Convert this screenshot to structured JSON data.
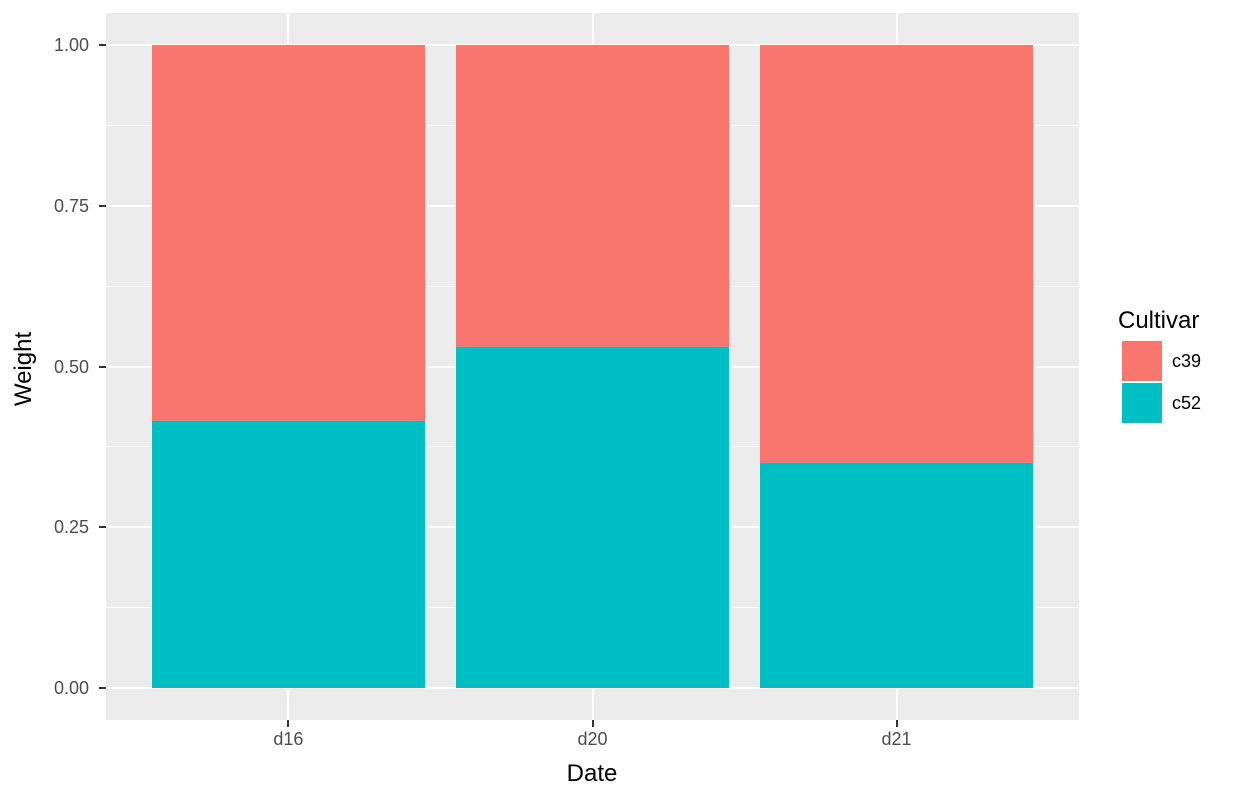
{
  "chart_data": {
    "type": "bar",
    "subtype": "stacked-filled-proportion",
    "title": "",
    "xlabel": "Date",
    "ylabel": "Weight",
    "categories": [
      "d16",
      "d20",
      "d21"
    ],
    "series": [
      {
        "name": "c39",
        "color": "#F8766D",
        "values": [
          0.585,
          0.47,
          0.65
        ]
      },
      {
        "name": "c52",
        "color": "#00BFC4",
        "values": [
          0.415,
          0.53,
          0.35
        ]
      }
    ],
    "stack_order_bottom_to_top": [
      "c52",
      "c39"
    ],
    "bar_width_fraction": 0.9,
    "ylim": [
      0,
      1
    ],
    "y_ticks": [
      {
        "value": 0.0,
        "label": "0.00"
      },
      {
        "value": 0.25,
        "label": "0.25"
      },
      {
        "value": 0.5,
        "label": "0.50"
      },
      {
        "value": 0.75,
        "label": "0.75"
      },
      {
        "value": 1.0,
        "label": "1.00"
      }
    ],
    "y_minor_gridlines": [
      0.125,
      0.375,
      0.625,
      0.875
    ],
    "grid": true,
    "legend": {
      "title": "Cultivar",
      "position": "right",
      "entries": [
        "c39",
        "c52"
      ]
    }
  },
  "style": {
    "background": "#FFFFFF",
    "panel_bg": "#EBEBEB",
    "grid_color": "#FFFFFF",
    "tick_label_color": "#4D4D4D",
    "tick_mark_color": "#333333",
    "axis_title_color": "#000000",
    "series_colors": {
      "c39": "#F8766D",
      "c52": "#00BFC4"
    }
  }
}
